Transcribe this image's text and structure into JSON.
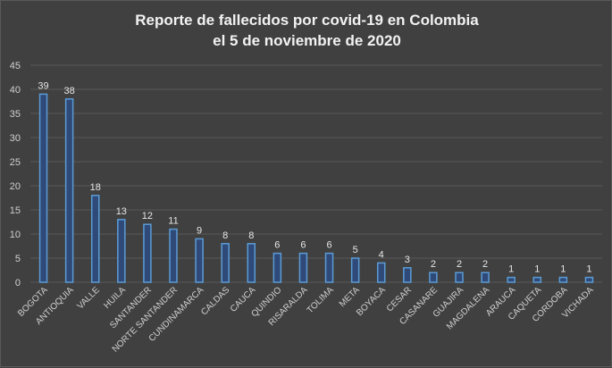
{
  "chart_data": {
    "type": "bar",
    "title_lines": [
      "Reporte de fallecidos por covid-19 en Colombia",
      "el 5 de noviembre de 2020"
    ],
    "categories": [
      "BOGOTA",
      "ANTIOQUIA",
      "VALLE",
      "HUILA",
      "SANTANDER",
      "NORTE SANTANDER",
      "CUNDINAMARCA",
      "CALDAS",
      "CAUCA",
      "QUINDIO",
      "RISARALDA",
      "TOLIMA",
      "META",
      "BOYACA",
      "CESAR",
      "CASANARE",
      "GUAJIRA",
      "MAGDALENA",
      "ARAUCA",
      "CAQUETA",
      "CORDOBA",
      "VICHADA"
    ],
    "values": [
      39,
      38,
      18,
      13,
      12,
      11,
      9,
      8,
      8,
      6,
      6,
      6,
      5,
      4,
      3,
      2,
      2,
      2,
      1,
      1,
      1,
      1
    ],
    "ylim": [
      0,
      45
    ],
    "yticks": [
      0,
      5,
      10,
      15,
      20,
      25,
      30,
      35,
      40,
      45
    ],
    "grid": true,
    "legend": "none",
    "colors": {
      "bar_fill": "#2f4a78",
      "bar_stroke": "#5b9bd5",
      "grid": "#595959",
      "background": "#404040"
    }
  }
}
